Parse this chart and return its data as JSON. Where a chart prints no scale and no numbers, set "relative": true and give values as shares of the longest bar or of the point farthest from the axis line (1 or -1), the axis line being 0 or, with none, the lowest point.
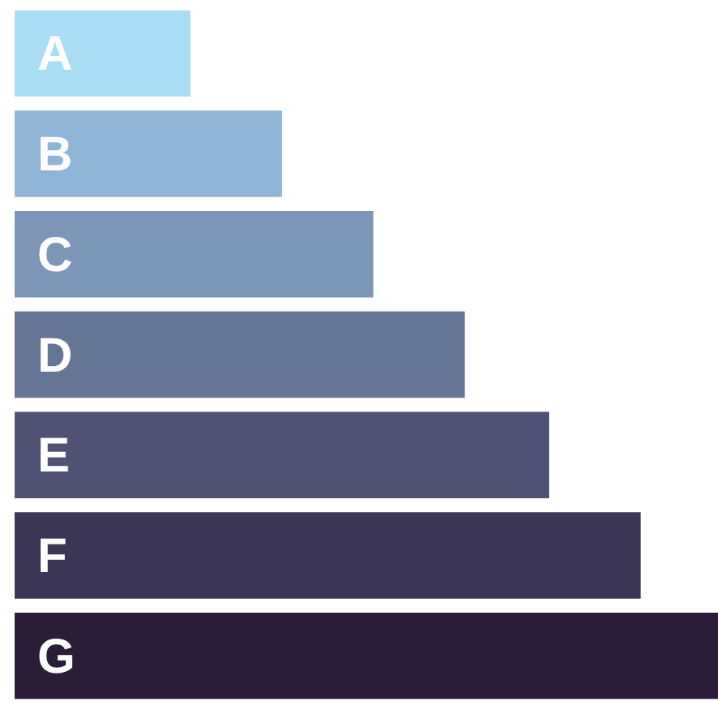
{
  "chart_data": {
    "type": "bar",
    "orientation": "horizontal",
    "relative": true,
    "categories": [
      "A",
      "B",
      "C",
      "D",
      "E",
      "F",
      "G"
    ],
    "values": [
      0.25,
      0.38,
      0.51,
      0.64,
      0.76,
      0.89,
      1
    ],
    "colors": [
      "#a9dcf5",
      "#8fb5d6",
      "#7b96b6",
      "#647596",
      "#4f5275",
      "#3d3556",
      "#2b1c38"
    ],
    "legend": false
  }
}
